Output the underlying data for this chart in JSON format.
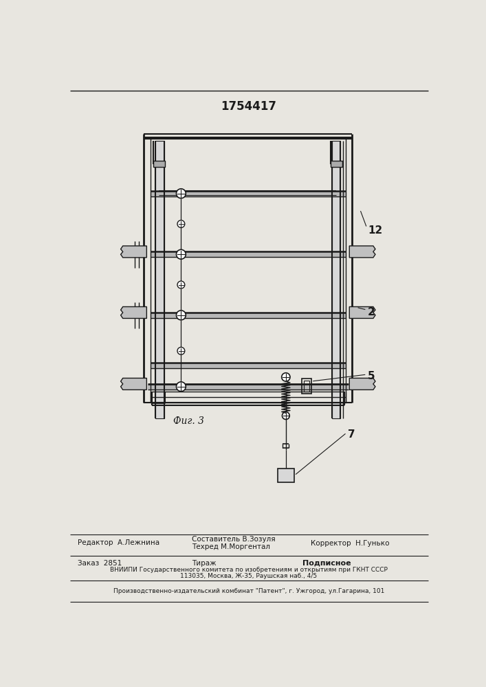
{
  "title": "1754417",
  "title_fontsize": 12,
  "fig_caption": "Фиг. 3",
  "label_12": "12",
  "label_2": "2",
  "label_5": "5",
  "label_7": "7",
  "footer_line1": "Составитель В.Зозуля",
  "footer_line2": "Техред М.Моргентал",
  "footer_editor": "Редактор  А.Лежнина",
  "footer_corrector": "Корректор  Н.Гунько",
  "footer_order": "Заказ  2851",
  "footer_tirazh": "Тираж",
  "footer_podpisnoe": "Подписное",
  "footer_vniip": "ВНИИПИ Государственного комитета по изобретениям и открытиям при ГКНТ СССР",
  "footer_addr": "113035, Москва, Ж-35, Раушская наб., 4/5",
  "footer_proizv": "Производственно-издательский комбинат \"Патент\", г. Ужгород, ул.Гагарина, 101",
  "bg_color": "#e8e6e0",
  "draw_color": "#1a1a1a",
  "line_width": 1.5,
  "thin_line": 0.7,
  "med_line": 1.0
}
